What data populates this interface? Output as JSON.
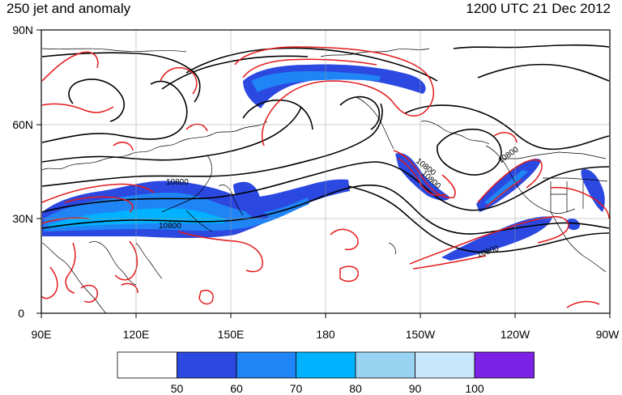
{
  "title_left": "250 jet and anomaly",
  "title_right": "1200 UTC 21 Dec 2012",
  "map": {
    "lat_ticks": [
      "90N",
      "60N",
      "30N",
      "0"
    ],
    "lon_ticks": [
      "90E",
      "120E",
      "150E",
      "180",
      "150W",
      "120W",
      "90W"
    ],
    "contour_labels": [
      "10800",
      "10800",
      "10800",
      "10800",
      "10800",
      "10800"
    ],
    "line_colors": {
      "height_contour": "#000000",
      "anomaly_contour": "#e31a1c",
      "coastline": "#000000"
    }
  },
  "colorbar": {
    "labels": [
      "50",
      "60",
      "70",
      "80",
      "90",
      "100"
    ],
    "colors": [
      "#ffffff",
      "#2b48e0",
      "#1f84f5",
      "#00b2ff",
      "#9ad3f2",
      "#c9e7fa",
      "#7c21e6"
    ]
  }
}
